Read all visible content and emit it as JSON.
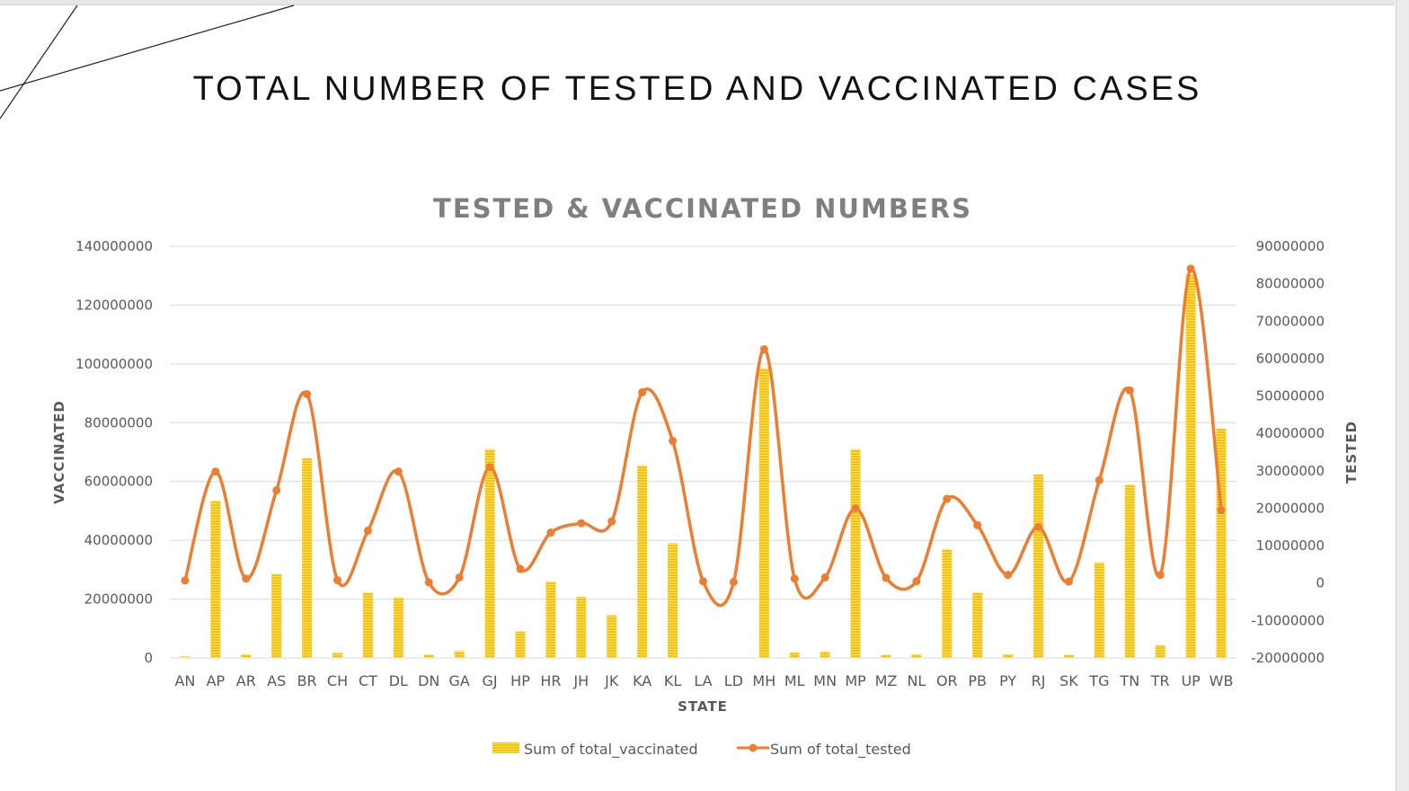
{
  "slide": {
    "title": "TOTAL NUMBER OF TESTED AND VACCINATED CASES"
  },
  "colors": {
    "bar": "#ffc000",
    "line": "#ed7d31",
    "grid": "#d9d9d9",
    "text": "#595959"
  },
  "chart_data": {
    "type": "bar+line",
    "title": "TESTED & VACCINATED NUMBERS",
    "xlabel": "STATE",
    "ylabel": "VACCINATED",
    "y2label": "TESTED",
    "categories": [
      "AN",
      "AP",
      "AR",
      "AS",
      "BR",
      "CH",
      "CT",
      "DL",
      "DN",
      "GA",
      "GJ",
      "HP",
      "HR",
      "JH",
      "JK",
      "KA",
      "KL",
      "LA",
      "LD",
      "MH",
      "ML",
      "MN",
      "MP",
      "MZ",
      "NL",
      "OR",
      "PB",
      "PY",
      "RJ",
      "SK",
      "TG",
      "TN",
      "TR",
      "UP",
      "WB"
    ],
    "series": [
      {
        "name": "Sum of total_vaccinated",
        "type": "bar",
        "axis": "left",
        "values": [
          500000,
          53500000,
          1300000,
          28500000,
          68000000,
          1700000,
          22300000,
          20600000,
          1200000,
          2300000,
          71000000,
          9000000,
          26000000,
          20800000,
          14500000,
          65500000,
          39000000,
          200000,
          100000,
          98500000,
          1800000,
          2200000,
          71000000,
          1100000,
          1300000,
          37000000,
          22300000,
          1300000,
          62500000,
          1000000,
          32500000,
          59000000,
          4300000,
          130500000,
          78000000
        ]
      },
      {
        "name": "Sum of total_tested",
        "type": "line",
        "axis": "right",
        "values": [
          700000,
          29800000,
          1200000,
          24800000,
          50500000,
          800000,
          14000000,
          29800000,
          200000,
          1500000,
          31000000,
          3800000,
          13500000,
          16000000,
          16500000,
          51000000,
          38000000,
          500000,
          300000,
          62500000,
          1200000,
          1500000,
          20000000,
          1400000,
          500000,
          22500000,
          15500000,
          2200000,
          15000000,
          400000,
          27500000,
          51500000,
          2200000,
          84000000,
          19500000
        ]
      }
    ],
    "ylim": [
      0,
      140000000
    ],
    "y2lim": [
      -20000000,
      90000000
    ],
    "yticks": [
      "0",
      "20000000",
      "40000000",
      "60000000",
      "80000000",
      "100000000",
      "120000000",
      "140000000"
    ],
    "y2ticks": [
      "-20000000",
      "-10000000",
      "0",
      "10000000",
      "20000000",
      "30000000",
      "40000000",
      "50000000",
      "60000000",
      "70000000",
      "80000000",
      "90000000"
    ],
    "legend": [
      "Sum of total_vaccinated",
      "Sum of total_tested"
    ],
    "legend_position": "bottom",
    "grid": true
  }
}
